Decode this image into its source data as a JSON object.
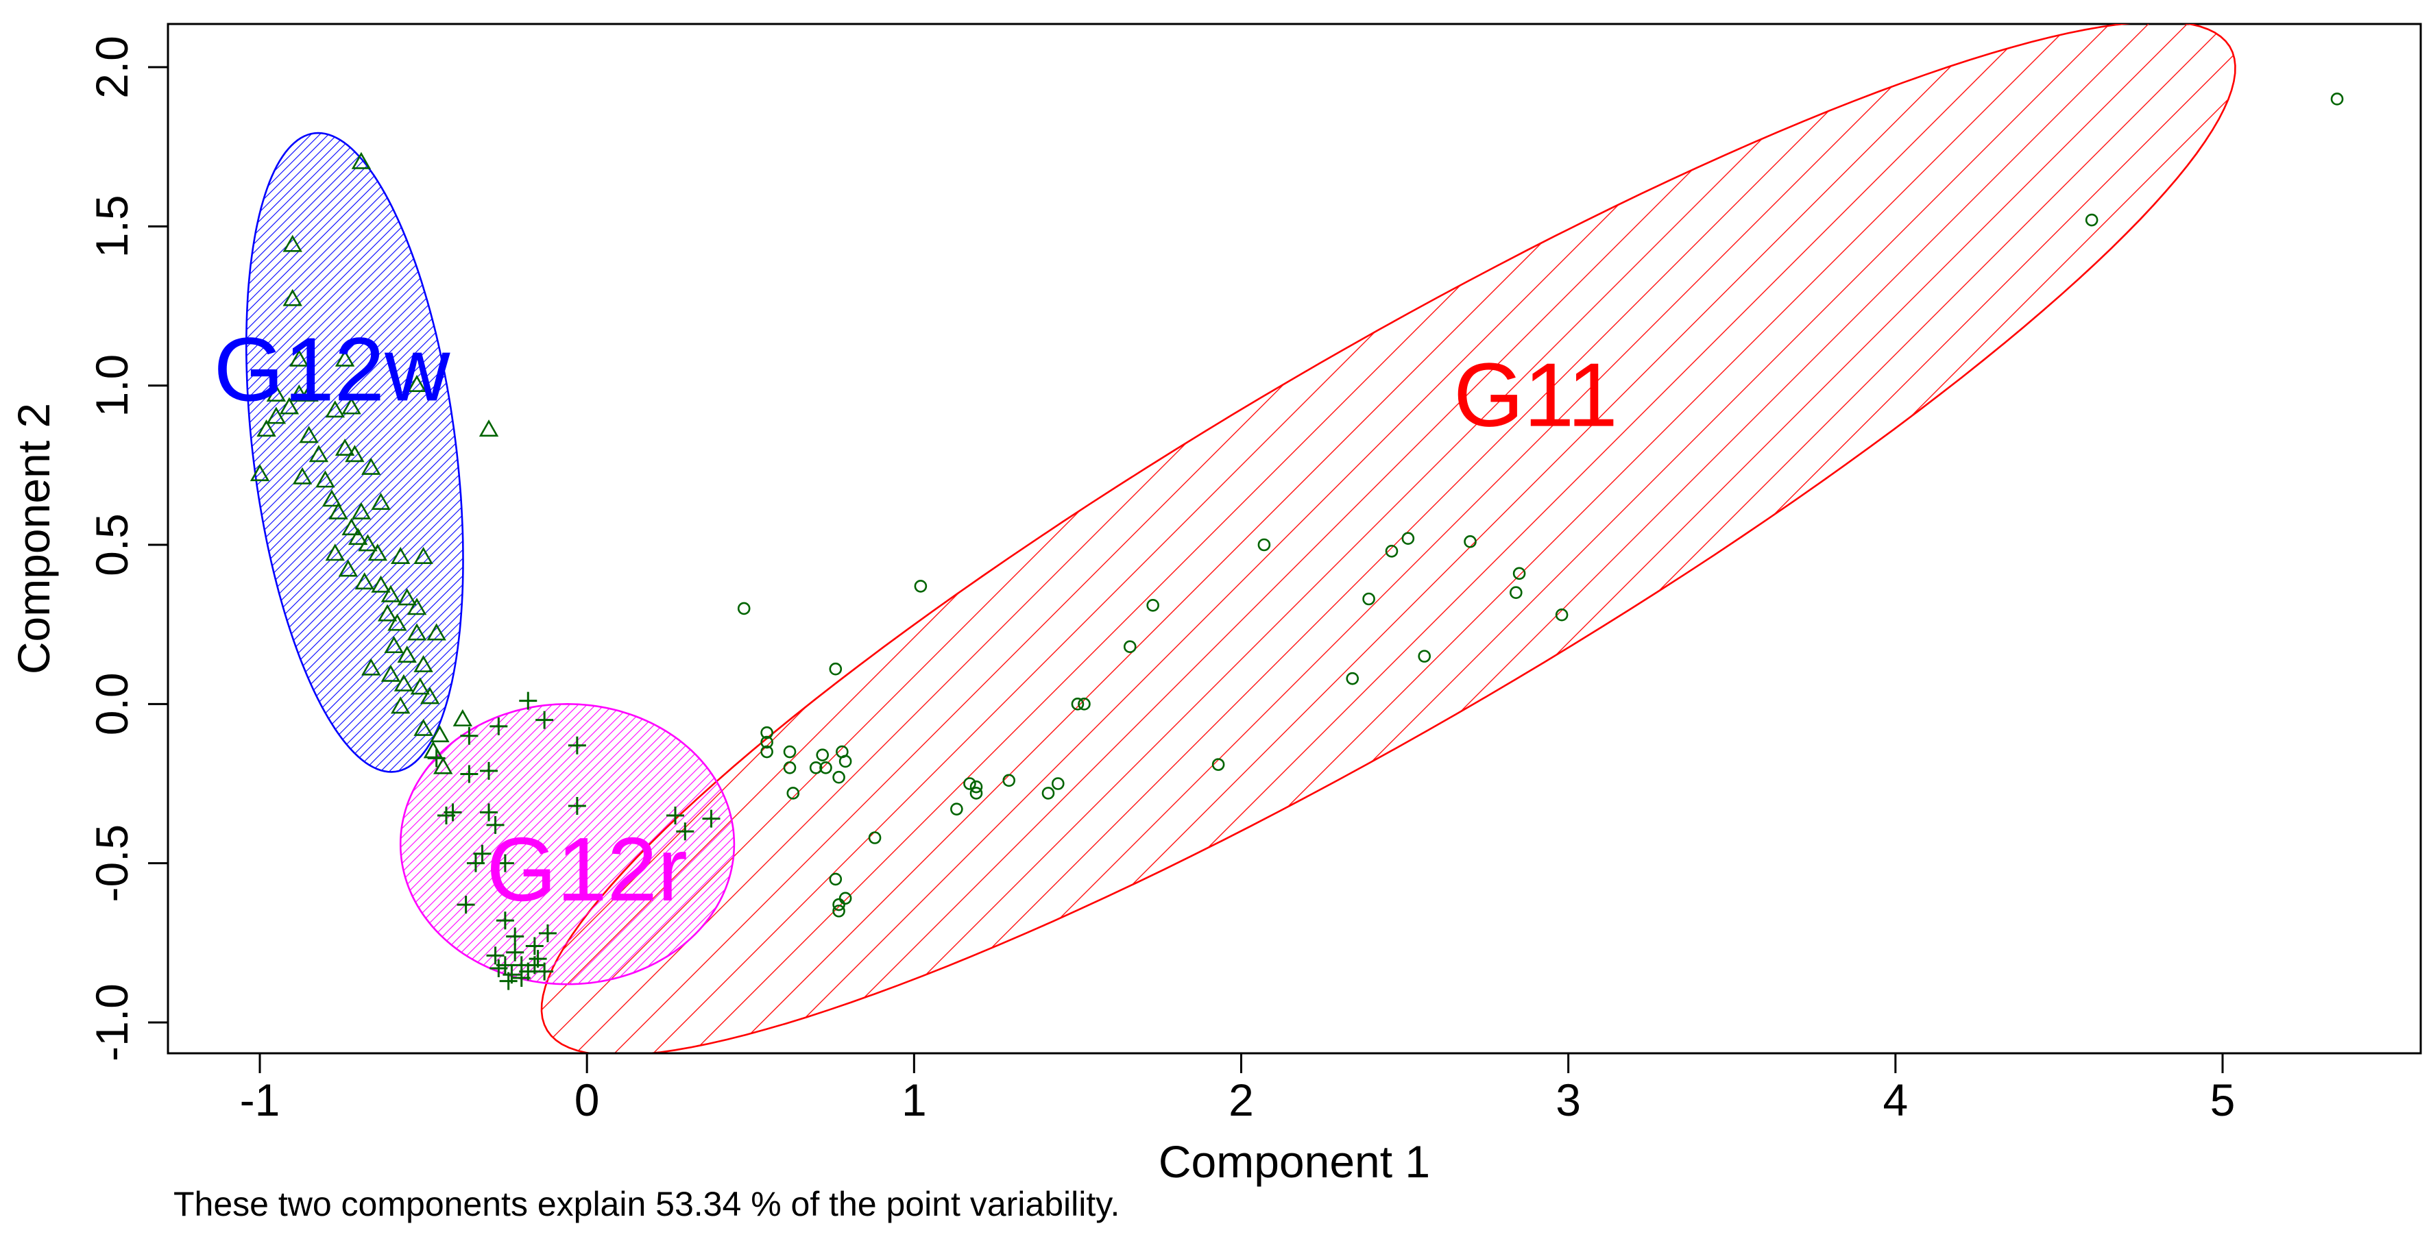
{
  "chart_data": {
    "type": "scatter",
    "xlabel": "Component 1",
    "ylabel": "Component 2",
    "xlim": [
      -1.3,
      5.6
    ],
    "ylim": [
      -1.1,
      2.1
    ],
    "x_ticks": [
      -1,
      0,
      1,
      2,
      3,
      4,
      5
    ],
    "y_ticks": [
      -1.0,
      -0.5,
      0.0,
      0.5,
      1.0,
      1.5,
      2.0
    ],
    "x_tick_labels": [
      "-1",
      "0",
      "1",
      "2",
      "3",
      "4",
      "5"
    ],
    "y_tick_labels": [
      "-1.0",
      "-0.5",
      "0.0",
      "0.5",
      "1.0",
      "1.5",
      "2.0"
    ],
    "grid": false,
    "caption": "These two components explain 53.34 % of the point variability.",
    "point_color": "#006400",
    "clusters": [
      {
        "name": "G11",
        "label": "G11",
        "marker": "circle",
        "color": "#ff0000",
        "label_pos": [
          2.9,
          0.97
        ],
        "ellipse": {
          "center": [
            2.45,
            0.52
          ],
          "a": 3.0,
          "b": 0.58,
          "angle_deg": 31,
          "hatch": "wide"
        },
        "points": [
          [
            5.35,
            1.9
          ],
          [
            4.6,
            1.52
          ],
          [
            2.07,
            0.5
          ],
          [
            2.51,
            0.52
          ],
          [
            2.46,
            0.48
          ],
          [
            2.7,
            0.51
          ],
          [
            2.85,
            0.41
          ],
          [
            2.84,
            0.35
          ],
          [
            2.39,
            0.33
          ],
          [
            2.98,
            0.28
          ],
          [
            2.56,
            0.15
          ],
          [
            2.34,
            0.08
          ],
          [
            1.02,
            0.37
          ],
          [
            0.48,
            0.3
          ],
          [
            1.73,
            0.31
          ],
          [
            1.66,
            0.18
          ],
          [
            0.76,
            0.11
          ],
          [
            1.5,
            0.0
          ],
          [
            1.52,
            0.0
          ],
          [
            1.93,
            -0.19
          ],
          [
            0.55,
            -0.09
          ],
          [
            0.55,
            -0.12
          ],
          [
            0.55,
            -0.15
          ],
          [
            0.62,
            -0.15
          ],
          [
            0.62,
            -0.2
          ],
          [
            0.7,
            -0.2
          ],
          [
            0.72,
            -0.16
          ],
          [
            0.73,
            -0.2
          ],
          [
            0.78,
            -0.15
          ],
          [
            0.79,
            -0.18
          ],
          [
            0.77,
            -0.23
          ],
          [
            0.63,
            -0.28
          ],
          [
            1.17,
            -0.25
          ],
          [
            1.19,
            -0.26
          ],
          [
            1.19,
            -0.28
          ],
          [
            1.29,
            -0.24
          ],
          [
            1.13,
            -0.33
          ],
          [
            1.41,
            -0.28
          ],
          [
            1.44,
            -0.25
          ],
          [
            0.88,
            -0.42
          ],
          [
            0.76,
            -0.55
          ],
          [
            0.79,
            -0.61
          ],
          [
            0.77,
            -0.63
          ],
          [
            0.77,
            -0.65
          ]
        ]
      },
      {
        "name": "G12w",
        "label": "G12w",
        "marker": "triangle",
        "color": "#0000ff",
        "label_pos": [
          -0.78,
          1.05
        ],
        "ellipse": {
          "center": [
            -0.71,
            0.79
          ],
          "a": 1.01,
          "b": 0.31,
          "angle_deg": -83,
          "hatch": "dense"
        },
        "points": [
          [
            -0.69,
            1.7
          ],
          [
            -0.9,
            1.44
          ],
          [
            -0.9,
            1.27
          ],
          [
            -0.88,
            1.08
          ],
          [
            -0.74,
            1.08
          ],
          [
            -0.52,
            1.0
          ],
          [
            -0.95,
            0.97
          ],
          [
            -0.88,
            0.97
          ],
          [
            -0.85,
            0.97
          ],
          [
            -0.91,
            0.93
          ],
          [
            -0.95,
            0.9
          ],
          [
            -0.77,
            0.92
          ],
          [
            -0.72,
            0.93
          ],
          [
            -0.98,
            0.86
          ],
          [
            -0.85,
            0.84
          ],
          [
            -0.82,
            0.78
          ],
          [
            -0.74,
            0.8
          ],
          [
            -0.71,
            0.78
          ],
          [
            -0.66,
            0.74
          ],
          [
            -0.3,
            0.86
          ],
          [
            -0.87,
            0.71
          ],
          [
            -0.8,
            0.7
          ],
          [
            -1.0,
            0.72
          ],
          [
            -0.78,
            0.64
          ],
          [
            -0.76,
            0.6
          ],
          [
            -0.69,
            0.6
          ],
          [
            -0.63,
            0.63
          ],
          [
            -0.72,
            0.55
          ],
          [
            -0.7,
            0.52
          ],
          [
            -0.67,
            0.5
          ],
          [
            -0.64,
            0.47
          ],
          [
            -0.77,
            0.47
          ],
          [
            -0.57,
            0.46
          ],
          [
            -0.5,
            0.46
          ],
          [
            -0.73,
            0.42
          ],
          [
            -0.68,
            0.38
          ],
          [
            -0.63,
            0.37
          ],
          [
            -0.6,
            0.34
          ],
          [
            -0.55,
            0.33
          ],
          [
            -0.52,
            0.3
          ],
          [
            -0.61,
            0.28
          ],
          [
            -0.58,
            0.25
          ],
          [
            -0.52,
            0.22
          ],
          [
            -0.46,
            0.22
          ],
          [
            -0.59,
            0.18
          ],
          [
            -0.55,
            0.15
          ],
          [
            -0.5,
            0.12
          ],
          [
            -0.66,
            0.11
          ],
          [
            -0.6,
            0.09
          ],
          [
            -0.56,
            0.06
          ],
          [
            -0.51,
            0.05
          ],
          [
            -0.48,
            0.02
          ],
          [
            -0.57,
            -0.01
          ],
          [
            -0.38,
            -0.05
          ],
          [
            -0.5,
            -0.08
          ],
          [
            -0.45,
            -0.1
          ],
          [
            -0.47,
            -0.15
          ],
          [
            -0.44,
            -0.2
          ]
        ]
      },
      {
        "name": "G12r",
        "label": "G12r",
        "marker": "plus",
        "color": "#ff00ff",
        "label_pos": [
          0.0,
          -0.52
        ],
        "ellipse": {
          "center": [
            -0.06,
            -0.44
          ],
          "a": 0.51,
          "b": 0.44,
          "angle_deg": 0,
          "hatch": "dense"
        },
        "points": [
          [
            -0.18,
            0.01
          ],
          [
            -0.27,
            -0.07
          ],
          [
            -0.13,
            -0.05
          ],
          [
            -0.36,
            -0.1
          ],
          [
            -0.03,
            -0.13
          ],
          [
            -0.46,
            -0.17
          ],
          [
            -0.3,
            -0.21
          ],
          [
            -0.36,
            -0.22
          ],
          [
            -0.43,
            -0.35
          ],
          [
            -0.41,
            -0.34
          ],
          [
            -0.3,
            -0.34
          ],
          [
            -0.28,
            -0.38
          ],
          [
            -0.32,
            -0.47
          ],
          [
            -0.25,
            -0.5
          ],
          [
            -0.34,
            -0.5
          ],
          [
            -0.03,
            -0.32
          ],
          [
            0.27,
            -0.35
          ],
          [
            0.3,
            -0.4
          ],
          [
            0.38,
            -0.36
          ],
          [
            -0.37,
            -0.63
          ],
          [
            -0.25,
            -0.68
          ],
          [
            -0.22,
            -0.73
          ],
          [
            -0.12,
            -0.72
          ],
          [
            -0.16,
            -0.76
          ],
          [
            -0.22,
            -0.78
          ],
          [
            -0.28,
            -0.79
          ],
          [
            -0.25,
            -0.82
          ],
          [
            -0.2,
            -0.82
          ],
          [
            -0.15,
            -0.8
          ],
          [
            -0.13,
            -0.84
          ],
          [
            -0.23,
            -0.85
          ],
          [
            -0.27,
            -0.83
          ],
          [
            -0.2,
            -0.86
          ],
          [
            -0.18,
            -0.84
          ],
          [
            -0.24,
            -0.87
          ],
          [
            -0.16,
            -0.82
          ]
        ]
      }
    ]
  }
}
